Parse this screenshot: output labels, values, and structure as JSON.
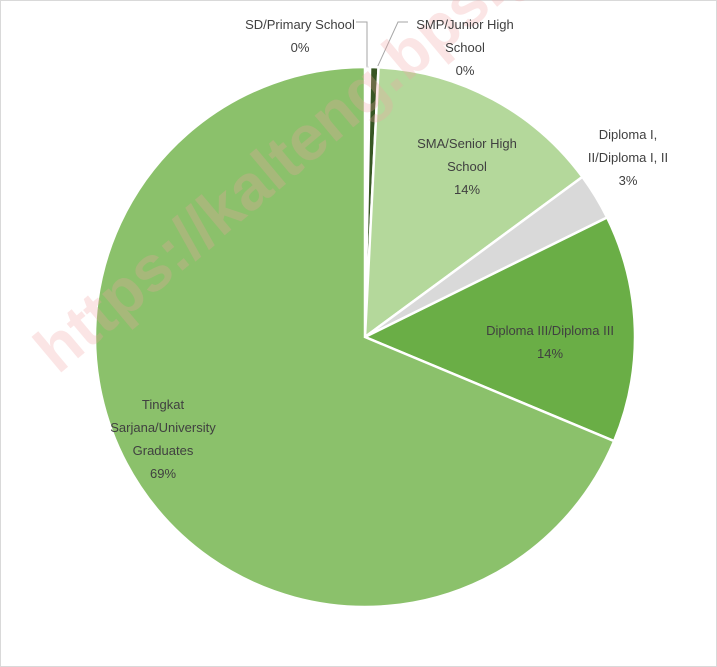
{
  "chart_data": {
    "type": "pie",
    "categories": [
      "SD/Primary School",
      "SMP/Junior High School",
      "SMA/Senior High School",
      "Diploma I, II/Diploma I, II",
      "Diploma III/Diploma III",
      "Tingkat Sarjana/University Graduates"
    ],
    "values": [
      0.3,
      0.5,
      14.1,
      2.8,
      13.6,
      68.7
    ],
    "value_labels": [
      "0%",
      "0%",
      "14%",
      "3%",
      "14%",
      "69%"
    ],
    "colors": [
      "#ffffff",
      "#375623",
      "#b4d89b",
      "#d9d9d9",
      "#6aae46",
      "#8bc16b"
    ],
    "watermark": "https://kalteng.bps.go.id"
  }
}
